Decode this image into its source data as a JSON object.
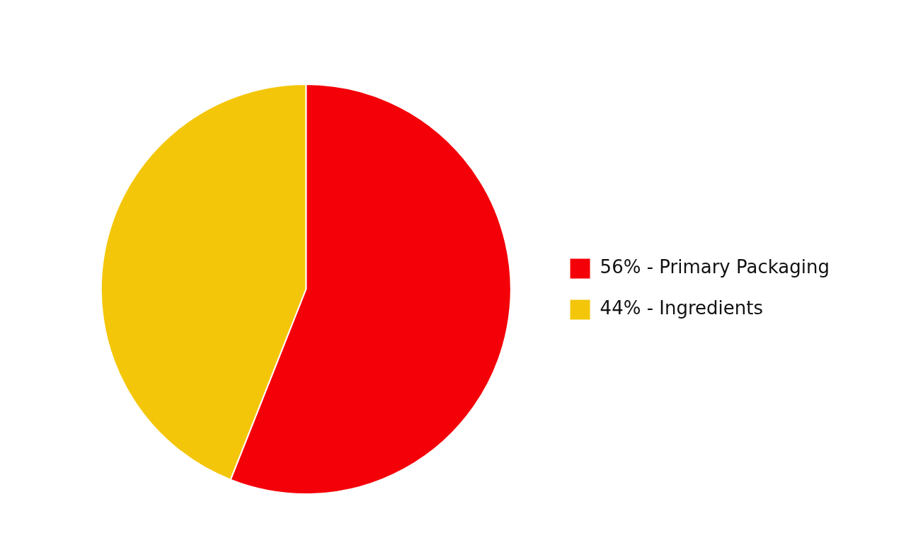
{
  "chart_data": {
    "type": "pie",
    "categories": [
      "56% - Primary Packaging",
      "44% - Ingredients"
    ],
    "values": [
      56,
      44
    ],
    "colors": [
      "#f40009",
      "#f4c609"
    ],
    "legend": "right"
  }
}
